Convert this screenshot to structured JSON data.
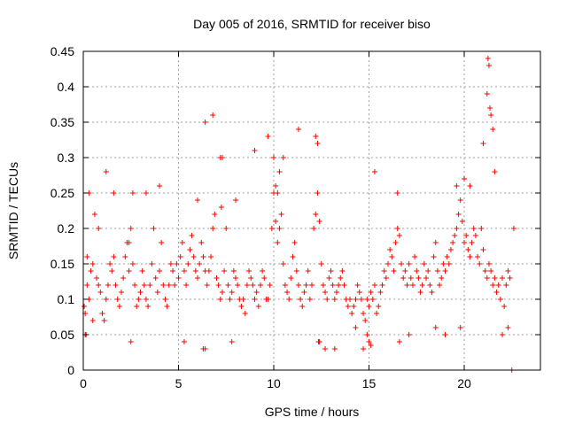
{
  "chart_data": {
    "type": "scatter",
    "title": "Day 005 of 2016, SRMTID for receiver biso",
    "xlabel": "GPS time / hours",
    "ylabel": "SRMTID / TECUs",
    "xlim": [
      0,
      24
    ],
    "ylim": [
      0,
      0.45
    ],
    "x_ticks": [
      0,
      5,
      10,
      15,
      20
    ],
    "x_tick_labels": [
      "0",
      "5",
      "10",
      "15",
      "20"
    ],
    "y_ticks": [
      0,
      0.05,
      0.1,
      0.15,
      0.2,
      0.25,
      0.3,
      0.35,
      0.4,
      0.45
    ],
    "y_tick_labels": [
      "0",
      "0.05",
      "0.1",
      "0.15",
      "0.2",
      "0.25",
      "0.3",
      "0.35",
      "0.4",
      "0.45"
    ],
    "grid": true,
    "marker": "plus",
    "color": "#ff0000",
    "x": [
      0.05,
      0.1,
      0.15,
      0.2,
      0.3,
      0.4,
      0.5,
      0.6,
      0.7,
      0.8,
      0.9,
      1.0,
      1.1,
      1.2,
      1.3,
      1.4,
      1.5,
      1.6,
      1.7,
      1.8,
      1.9,
      2.0,
      2.1,
      2.2,
      2.3,
      2.4,
      2.5,
      2.6,
      2.7,
      2.8,
      2.9,
      3.0,
      3.1,
      3.2,
      3.3,
      3.4,
      3.5,
      3.6,
      3.7,
      3.8,
      3.9,
      4.0,
      4.1,
      4.2,
      4.3,
      4.4,
      4.5,
      4.6,
      4.7,
      4.8,
      4.9,
      5.0,
      5.1,
      5.2,
      5.3,
      5.4,
      5.5,
      5.6,
      5.7,
      5.8,
      5.9,
      6.0,
      6.1,
      6.2,
      6.3,
      6.4,
      6.5,
      6.6,
      6.7,
      6.8,
      6.9,
      7.0,
      7.1,
      7.2,
      7.3,
      7.4,
      7.5,
      7.6,
      7.7,
      7.8,
      7.9,
      8.0,
      8.1,
      8.2,
      8.3,
      8.4,
      8.5,
      8.6,
      8.7,
      8.8,
      8.9,
      9.0,
      9.1,
      9.2,
      9.3,
      9.4,
      9.5,
      9.6,
      9.7,
      9.8,
      9.9,
      10.0,
      10.1,
      10.2,
      10.3,
      10.4,
      10.5,
      10.6,
      10.7,
      10.8,
      10.9,
      11.0,
      11.1,
      11.2,
      11.3,
      11.4,
      11.5,
      11.6,
      11.7,
      11.8,
      11.9,
      12.0,
      12.1,
      12.2,
      12.3,
      12.4,
      12.5,
      12.6,
      12.7,
      12.8,
      12.9,
      13.0,
      13.1,
      13.2,
      13.3,
      13.4,
      13.5,
      13.6,
      13.7,
      13.8,
      13.9,
      14.0,
      14.1,
      14.2,
      14.3,
      14.4,
      14.5,
      14.6,
      14.7,
      14.8,
      14.9,
      15.0,
      15.1,
      15.2,
      15.3,
      15.4,
      15.5,
      15.6,
      15.7,
      15.8,
      15.9,
      16.0,
      16.1,
      16.2,
      16.3,
      16.4,
      16.5,
      16.6,
      16.7,
      16.8,
      16.9,
      17.0,
      17.1,
      17.2,
      17.3,
      17.4,
      17.5,
      17.6,
      17.7,
      17.8,
      17.9,
      18.0,
      18.1,
      18.2,
      18.3,
      18.4,
      18.5,
      18.6,
      18.7,
      18.8,
      18.9,
      19.0,
      19.1,
      19.2,
      19.3,
      19.4,
      19.5,
      19.6,
      19.7,
      19.8,
      19.9,
      20.0,
      20.1,
      20.2,
      20.3,
      20.4,
      20.5,
      20.6,
      20.7,
      20.8,
      20.9,
      21.0,
      21.1,
      21.2,
      21.3,
      21.4,
      21.5,
      21.6,
      21.7,
      21.8,
      21.9,
      22.0,
      22.1,
      22.2,
      22.3,
      22.4,
      22.5,
      22.6,
      0.1,
      0.2,
      0.3,
      0.5,
      0.8,
      1.2,
      1.6,
      2.4,
      2.5,
      2.6,
      3.3,
      4.0,
      5.3,
      6.0,
      6.4,
      6.8,
      7.2,
      7.25,
      7.3,
      7.8,
      8.0,
      9.0,
      9.7,
      10.0,
      10.1,
      10.2,
      10.3,
      10.5,
      11.3,
      12.2,
      12.3,
      12.35,
      12.4,
      12.7,
      13.2,
      14.3,
      14.9,
      15.3,
      16.5,
      16.6,
      17.1,
      18.5,
      19.0,
      19.6,
      19.8,
      20.0,
      20.3,
      21.0,
      21.2,
      21.25,
      21.3,
      21.35,
      21.4,
      21.5,
      21.6,
      22.0,
      22.3,
      6.3,
      6.4,
      14.7,
      15.0,
      15.1
    ],
    "y": [
      0.09,
      0.08,
      0.05,
      0.12,
      0.1,
      0.14,
      0.15,
      0.22,
      0.13,
      0.12,
      0.11,
      0.08,
      0.07,
      0.1,
      0.12,
      0.15,
      0.14,
      0.16,
      0.12,
      0.1,
      0.09,
      0.11,
      0.13,
      0.16,
      0.18,
      0.14,
      0.2,
      0.15,
      0.12,
      0.09,
      0.1,
      0.11,
      0.14,
      0.12,
      0.1,
      0.09,
      0.12,
      0.15,
      0.2,
      0.13,
      0.11,
      0.14,
      0.18,
      0.12,
      0.1,
      0.09,
      0.12,
      0.15,
      0.14,
      0.12,
      0.15,
      0.13,
      0.16,
      0.18,
      0.14,
      0.12,
      0.15,
      0.17,
      0.19,
      0.16,
      0.14,
      0.13,
      0.15,
      0.18,
      0.16,
      0.14,
      0.12,
      0.14,
      0.16,
      0.2,
      0.22,
      0.13,
      0.12,
      0.1,
      0.11,
      0.14,
      0.2,
      0.12,
      0.1,
      0.11,
      0.14,
      0.13,
      0.12,
      0.1,
      0.09,
      0.1,
      0.08,
      0.12,
      0.14,
      0.13,
      0.12,
      0.1,
      0.11,
      0.09,
      0.12,
      0.14,
      0.13,
      0.1,
      0.1,
      0.12,
      0.2,
      0.25,
      0.21,
      0.18,
      0.2,
      0.22,
      0.15,
      0.12,
      0.11,
      0.1,
      0.13,
      0.16,
      0.18,
      0.14,
      0.12,
      0.1,
      0.09,
      0.11,
      0.12,
      0.14,
      0.1,
      0.12,
      0.2,
      0.22,
      0.25,
      0.21,
      0.15,
      0.12,
      0.11,
      0.1,
      0.13,
      0.14,
      0.12,
      0.1,
      0.11,
      0.12,
      0.13,
      0.14,
      0.12,
      0.1,
      0.09,
      0.1,
      0.08,
      0.09,
      0.1,
      0.12,
      0.11,
      0.1,
      0.08,
      0.07,
      0.1,
      0.09,
      0.11,
      0.1,
      0.12,
      0.08,
      0.09,
      0.11,
      0.12,
      0.14,
      0.13,
      0.15,
      0.17,
      0.16,
      0.14,
      0.18,
      0.2,
      0.19,
      0.15,
      0.13,
      0.14,
      0.12,
      0.15,
      0.13,
      0.12,
      0.16,
      0.14,
      0.13,
      0.11,
      0.12,
      0.15,
      0.13,
      0.14,
      0.12,
      0.11,
      0.16,
      0.18,
      0.14,
      0.12,
      0.13,
      0.15,
      0.14,
      0.16,
      0.15,
      0.17,
      0.18,
      0.19,
      0.2,
      0.22,
      0.24,
      0.21,
      0.18,
      0.19,
      0.17,
      0.16,
      0.18,
      0.2,
      0.19,
      0.16,
      0.15,
      0.2,
      0.17,
      0.14,
      0.13,
      0.15,
      0.14,
      0.12,
      0.13,
      0.11,
      0.12,
      0.1,
      0.13,
      0.09,
      0.12,
      0.14,
      0.13,
      0.0,
      0.2,
      0.05,
      0.16,
      0.25,
      0.07,
      0.2,
      0.28,
      0.25,
      0.18,
      0.04,
      0.25,
      0.25,
      0.26,
      0.04,
      0.24,
      0.35,
      0.36,
      0.3,
      0.23,
      0.3,
      0.04,
      0.24,
      0.31,
      0.33,
      0.3,
      0.26,
      0.25,
      0.28,
      0.3,
      0.34,
      0.33,
      0.32,
      0.04,
      0.04,
      0.03,
      0.03,
      0.06,
      0.05,
      0.28,
      0.25,
      0.04,
      0.05,
      0.06,
      0.05,
      0.26,
      0.06,
      0.27,
      0.26,
      0.32,
      0.39,
      0.44,
      0.43,
      0.37,
      0.36,
      0.34,
      0.28,
      0.05,
      0.06,
      0.03,
      0.03,
      0.03,
      0.04,
      0.035
    ],
    "point_count_note": ""
  }
}
